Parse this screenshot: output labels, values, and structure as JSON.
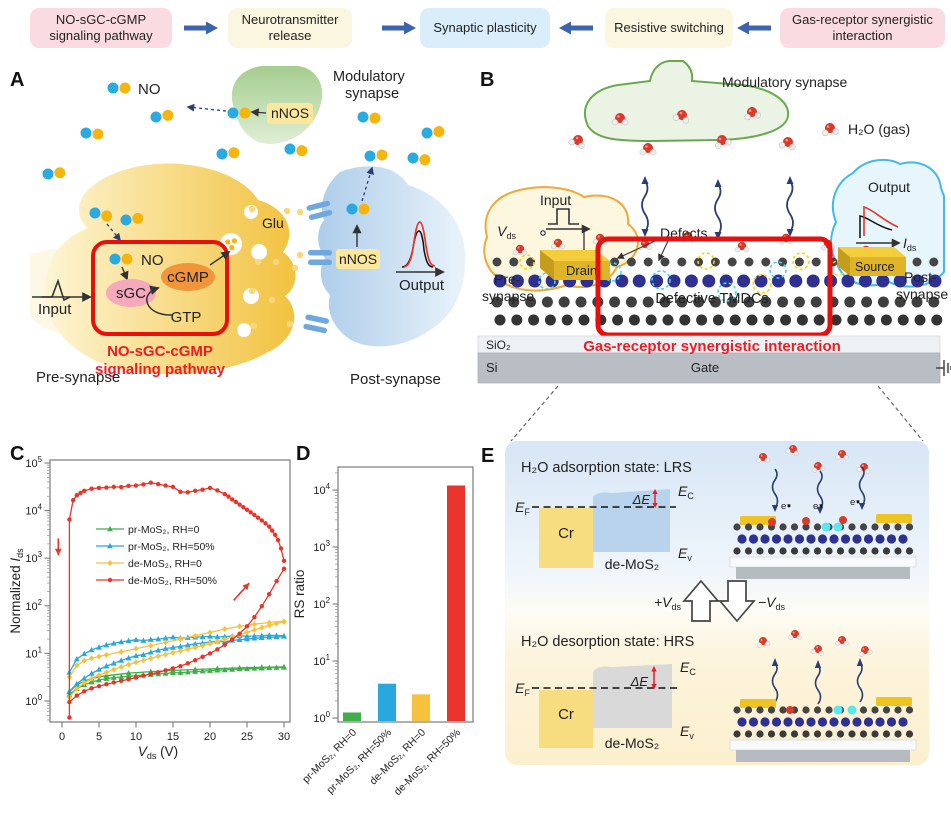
{
  "flow": {
    "steps": [
      {
        "label": "NO-sGC-cGMP signaling pathway",
        "bg": "#fadbe1"
      },
      {
        "label": "Neurotransmitter release",
        "bg": "#fbf6df"
      },
      {
        "label": "Synaptic plasticity",
        "bg": "#d9eefa"
      },
      {
        "label": "Resistive switching",
        "bg": "#fbf6df"
      },
      {
        "label": "Gas-receptor synergistic interaction",
        "bg": "#fadbe1"
      }
    ],
    "arrow_color": "#3b63ae"
  },
  "panelA": {
    "label": "A",
    "no_legend": "NO",
    "modulatory1": "Modulatory",
    "modulatory2": "synapse",
    "nnos_top": "nNOS",
    "nnos_post": "nNOS",
    "glu": "Glu",
    "no_in_box": "NO",
    "sgc": "sGC",
    "cgmp": "cGMP",
    "gtp": "GTP",
    "pathway1": "NO-sGC-cGMP",
    "pathway2": "signaling pathway",
    "input": "Input",
    "output": "Output",
    "pre": "Pre-synapse",
    "post": "Post-synapse"
  },
  "panelB": {
    "label": "B",
    "modulatory": "Modulatory synapse",
    "h2o": "H₂O (gas)",
    "input": "Input",
    "output": "Output",
    "v": "V",
    "i": "I",
    "ds": "ds",
    "drain": "Drain",
    "source": "Source",
    "defects": "Defects",
    "tmdc": "Defective TMDCs",
    "pre1": "Pre-",
    "pre2": "synapse",
    "post1": "Post-",
    "post2": "synapse",
    "sio2": "SiO₂",
    "si": "Si",
    "gate": "Gate",
    "caption": "Gas-receptor synergistic interaction"
  },
  "panelE": {
    "label": "E",
    "lrs_title": "H₂O adsorption state: LRS",
    "hrs_title": "H₂O desorption state: HRS",
    "e": "E",
    "f": "F",
    "c": "C",
    "v": "v",
    "cr": "Cr",
    "demos2": "de-MoS₂",
    "deltaE": "ΔE",
    "plus_v": "+V",
    "minus_v": "−V",
    "ds": "ds",
    "e_minus": "e⁻"
  },
  "chart_data": [
    {
      "id": "C",
      "type": "line",
      "panel_letter": "C",
      "xlabel_v": "V",
      "xlabel_sub": "ds",
      "xlabel_unit": " (V)",
      "ylabel_main": "Normalized ",
      "ylabel_i": "I",
      "ylabel_sub": "ds",
      "ylog": true,
      "xlim": [
        -1.5,
        31.5
      ],
      "ylim": [
        0.4,
        100000
      ],
      "xticks": [
        0,
        5,
        10,
        15,
        20,
        25,
        30
      ],
      "ytick_exponents": [
        0,
        1,
        2,
        3,
        4,
        5
      ],
      "legend_position": "center-left",
      "series": [
        {
          "name": "pr-MoS₂, RH=0",
          "color": "#3fae49",
          "marker": "triangle",
          "segments": [
            {
              "x": [
                1,
                2,
                3,
                4,
                5,
                6,
                7,
                8,
                9,
                10,
                11,
                12,
                13,
                14,
                15,
                16,
                17,
                18,
                19,
                20,
                21,
                22,
                23,
                24,
                25,
                26,
                27,
                28,
                29,
                30
              ],
              "y": [
                1.35,
                1.8,
                2.2,
                2.5,
                2.75,
                2.95,
                3.1,
                3.2,
                3.3,
                3.4,
                3.5,
                3.6,
                3.7,
                3.8,
                3.9,
                3.95,
                4.05,
                4.15,
                4.25,
                4.35,
                4.45,
                4.5,
                4.6,
                4.7,
                4.75,
                4.85,
                4.9,
                5.0,
                5.05,
                5.1
              ]
            },
            {
              "x": [
                30,
                27,
                24,
                21,
                18,
                15,
                12,
                9,
                6,
                4,
                2,
                1
              ],
              "y": [
                5.2,
                5.1,
                4.95,
                4.8,
                4.6,
                4.4,
                4.15,
                3.85,
                3.4,
                3.0,
                2.2,
                1.55
              ]
            }
          ]
        },
        {
          "name": "pr-MoS₂, RH=50%",
          "color": "#29a8e0",
          "marker": "triangle",
          "segments": [
            {
              "x": [
                1,
                2,
                3,
                4,
                5,
                6,
                7,
                8,
                9,
                10,
                11,
                12,
                13,
                14,
                15,
                16,
                17,
                18,
                19,
                20,
                21,
                22,
                23,
                24,
                25,
                26,
                27,
                28,
                29,
                30
              ],
              "y": [
                1.6,
                2.3,
                3.0,
                3.8,
                4.6,
                5.4,
                6.2,
                7.1,
                8.0,
                8.9,
                9.4,
                10.6,
                11.6,
                12.6,
                13.3,
                14.0,
                14.9,
                15.8,
                16.5,
                17.3,
                17.9,
                17.5,
                18.8,
                19.4,
                20.0,
                20.8,
                21.4,
                21.9,
                22.1,
                22.8
              ]
            },
            {
              "x": [
                30,
                29,
                28,
                27,
                26,
                25,
                24,
                23,
                22,
                21,
                20,
                19,
                18,
                17,
                16,
                15,
                14,
                13,
                12,
                11,
                10,
                9,
                8,
                7,
                6,
                5,
                4,
                3,
                2,
                1
              ],
              "y": [
                23.4,
                23.8,
                24.0,
                23.6,
                23.2,
                23.0,
                23.4,
                23.0,
                22.6,
                22.1,
                22.9,
                22.2,
                21.9,
                21.5,
                21.0,
                21.9,
                20.9,
                20.0,
                19.5,
                18.6,
                19.4,
                18.4,
                17.4,
                16.3,
                15.0,
                13.4,
                11.8,
                9.8,
                7.6,
                4.0
              ]
            }
          ]
        },
        {
          "name": "de-MoS₂, RH=0",
          "color": "#f6c13d",
          "marker": "diamond",
          "segments": [
            {
              "x": [
                1,
                2,
                3,
                4,
                5,
                6,
                7,
                8,
                9,
                10,
                11,
                12,
                13,
                14,
                15,
                16,
                17,
                18,
                19,
                20,
                21,
                22,
                23,
                24,
                25,
                26,
                27,
                28,
                29,
                30
              ],
              "y": [
                1.2,
                1.8,
                2.4,
                2.95,
                3.5,
                4.0,
                4.6,
                5.2,
                5.8,
                6.5,
                7.2,
                7.9,
                8.7,
                9.5,
                10.3,
                11.2,
                12.2,
                13.3,
                14.6,
                16.0,
                17.8,
                19.8,
                22.0,
                24.6,
                27.6,
                31.0,
                34.8,
                38.8,
                42.8,
                46.0
              ]
            },
            {
              "x": [
                30,
                28,
                26,
                24,
                22,
                20,
                18,
                16,
                14,
                12,
                10,
                8,
                6,
                5,
                4,
                3,
                2,
                1
              ],
              "y": [
                47.5,
                44.5,
                41.0,
                37.0,
                32.5,
                27.5,
                23.4,
                20.0,
                17.0,
                14.6,
                12.6,
                10.8,
                9.3,
                8.6,
                7.9,
                7.0,
                5.6,
                3.2
              ]
            }
          ]
        },
        {
          "name": "de-MoS₂, RH=50%",
          "color": "#e8342a",
          "marker": "circle",
          "segments": [
            {
              "x": [
                1,
                2,
                3,
                4,
                5,
                6,
                7,
                8,
                9,
                10,
                11,
                12,
                13,
                14,
                15,
                16,
                17,
                18,
                19,
                20,
                21,
                22,
                23,
                24,
                25,
                26,
                27,
                28,
                29,
                30
              ],
              "y": [
                0.95,
                1.3,
                1.6,
                1.85,
                2.05,
                2.25,
                2.45,
                2.65,
                2.85,
                3.1,
                3.4,
                3.7,
                4.0,
                4.4,
                4.85,
                5.4,
                6.2,
                7.2,
                8.5,
                10,
                12.2,
                15.2,
                19.5,
                26,
                37,
                58,
                98,
                175,
                330,
                600
              ]
            },
            {
              "x": [
                30,
                29.6,
                29.2,
                28.8,
                28.4,
                28,
                27.5,
                27,
                26.5,
                26,
                25.5,
                25,
                24.5,
                24,
                23.5,
                23,
                22.5,
                22,
                21,
                20,
                19,
                18,
                17,
                16,
                15,
                14,
                13,
                12,
                11,
                10,
                9,
                8,
                7,
                6,
                5,
                4,
                3,
                2.5,
                2,
                1.5,
                1,
                1
              ],
              "y": [
                880,
                1600,
                2400,
                3100,
                3800,
                4600,
                5400,
                6200,
                7100,
                8100,
                9200,
                10400,
                11800,
                13400,
                15200,
                17200,
                19700,
                22200,
                26500,
                30000,
                27500,
                26000,
                24200,
                24800,
                31500,
                33500,
                36000,
                38500,
                35500,
                33500,
                33200,
                31200,
                31500,
                30500,
                30000,
                28800,
                26000,
                23500,
                21000,
                16500,
                6500,
                0.45
              ]
            }
          ]
        }
      ],
      "annotations": [
        {
          "type": "arrow",
          "color": "#e8342a",
          "x1": -0.5,
          "y1": 2600,
          "x2": -0.5,
          "y2": 1150
        },
        {
          "type": "arrow",
          "color": "#e8342a",
          "x1": 23.2,
          "y1": 130,
          "x2": 25.3,
          "y2": 300
        }
      ]
    },
    {
      "id": "D",
      "type": "bar",
      "panel_letter": "D",
      "ylabel": "RS ratio",
      "ylog": true,
      "ylim": [
        1,
        28000
      ],
      "ytick_exponents": [
        0,
        1,
        2,
        3,
        4
      ],
      "categories": [
        "pr-MoS₂, RH=0",
        "pr-MoS₂, RH=50%",
        "de-MoS₂, RH=0",
        "de-MoS₂, RH=50%"
      ],
      "values": [
        1.25,
        4.0,
        2.6,
        12000
      ],
      "colors": [
        "#3fae49",
        "#29a8e0",
        "#f6c13d",
        "#e8342a"
      ]
    }
  ]
}
